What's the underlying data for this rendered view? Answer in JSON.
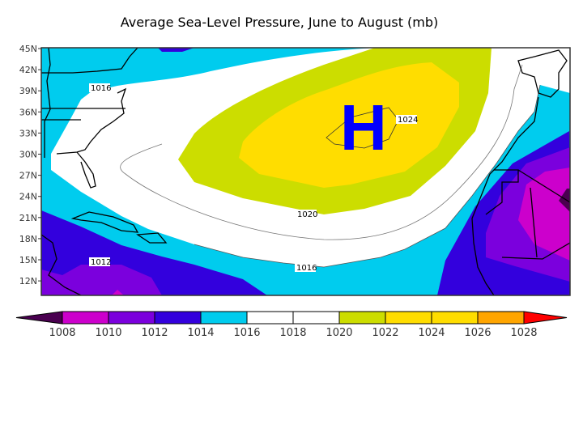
{
  "title": "Average Sea-Level Pressure, June to August (mb)",
  "lat_labels": [
    "45N",
    "42N",
    "39N",
    "36N",
    "33N",
    "30N",
    "27N",
    "24N",
    "21N",
    "18N",
    "15N",
    "12N"
  ],
  "contour_labels": {
    "west_1016": "1016",
    "south_1012": "1012",
    "center_1024": "1024",
    "mid_1020": "1020",
    "south_1016": "1016"
  },
  "high_symbol": "H",
  "colorbar": {
    "levels": [
      "1008",
      "1010",
      "1012",
      "1014",
      "1016",
      "1018",
      "1020",
      "1022",
      "1024",
      "1026",
      "1028"
    ],
    "colors": [
      "#cc00cc",
      "#7b00dd",
      "#3300dd",
      "#00ccee",
      "#ffffff",
      "#ffffff",
      "#ccdd00",
      "#ffdd00",
      "#ffdd00",
      "#ffa500"
    ],
    "under_color": "#4a0050",
    "over_color": "#ff0000"
  },
  "colors": {
    "c_lt1008": "#4a0050",
    "c_1008": "#cc00cc",
    "c_1010": "#7b00dd",
    "c_1012": "#3300dd",
    "c_1014": "#00ccee",
    "c_1016": "#ffffff",
    "c_1020": "#ccdd00",
    "c_1022": "#ffdd00",
    "high": "#0000ff"
  }
}
